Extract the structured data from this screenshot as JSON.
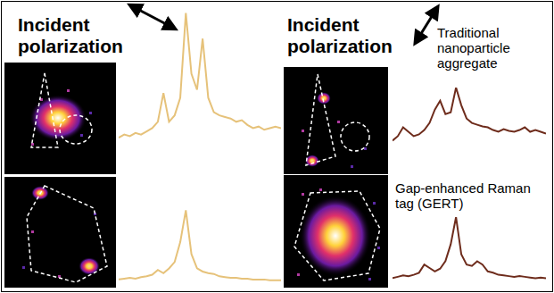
{
  "labels": {
    "left_header": "Incident polarization",
    "right_header": "Incident polarization",
    "top_right": "Traditional nanoparticle aggregate",
    "bottom_right": "Gap-enhanced Raman tag (GERT)"
  },
  "chart_data": [
    {
      "type": "line",
      "x": [
        0,
        1,
        2,
        3,
        4,
        5,
        6,
        7,
        8,
        9,
        10,
        11,
        12,
        13,
        14,
        15,
        16,
        17,
        18,
        19,
        20,
        21,
        22,
        23,
        24,
        25,
        26,
        27,
        28,
        29
      ],
      "values": [
        20,
        22,
        21,
        23,
        22,
        24,
        26,
        30,
        48,
        30,
        34,
        45,
        98,
        60,
        50,
        82,
        45,
        36,
        34,
        33,
        32,
        30,
        31,
        28,
        26,
        27,
        25,
        26,
        27,
        26
      ],
      "color": "#e6c27a",
      "xlim": [
        0,
        29
      ],
      "ylim": [
        0,
        100
      ],
      "tick_labels": false
    },
    {
      "type": "line",
      "x": [
        0,
        1,
        2,
        3,
        4,
        5,
        6,
        7,
        8,
        9,
        10,
        11,
        12,
        13,
        14,
        15,
        16,
        17,
        18,
        19,
        20,
        21,
        22,
        23,
        24,
        25,
        26,
        27,
        28,
        29
      ],
      "values": [
        8,
        9,
        10,
        9,
        11,
        12,
        14,
        20,
        16,
        22,
        30,
        55,
        95,
        40,
        22,
        18,
        16,
        15,
        12,
        11,
        10,
        10,
        9,
        9,
        8,
        8,
        8,
        7,
        7,
        7
      ],
      "color": "#e6c27a",
      "xlim": [
        0,
        29
      ],
      "ylim": [
        0,
        100
      ],
      "tick_labels": false
    },
    {
      "type": "line",
      "x": [
        0,
        1,
        2,
        3,
        4,
        5,
        6,
        7,
        8,
        9,
        10,
        11,
        12,
        13,
        14,
        15,
        16,
        17,
        18,
        19,
        20,
        21,
        22,
        23,
        24,
        25,
        26,
        27,
        28,
        29
      ],
      "values": [
        40,
        45,
        55,
        50,
        45,
        47,
        52,
        60,
        75,
        85,
        70,
        72,
        100,
        80,
        65,
        60,
        58,
        56,
        55,
        52,
        50,
        53,
        51,
        50,
        52,
        55,
        50,
        52,
        50,
        48
      ],
      "color": "#6e2c1c",
      "xlim": [
        0,
        29
      ],
      "ylim": [
        0,
        100
      ],
      "tick_labels": false
    },
    {
      "type": "line",
      "x": [
        0,
        1,
        2,
        3,
        4,
        5,
        6,
        7,
        8,
        9,
        10,
        11,
        12,
        13,
        14,
        15,
        16,
        17,
        18,
        19,
        20,
        21,
        22,
        23,
        24,
        25,
        26,
        27,
        28,
        29
      ],
      "values": [
        10,
        12,
        14,
        13,
        15,
        18,
        30,
        25,
        20,
        24,
        35,
        60,
        100,
        45,
        30,
        28,
        35,
        30,
        20,
        18,
        15,
        14,
        13,
        12,
        13,
        12,
        11,
        10,
        11,
        10
      ],
      "color": "#6e2c1c",
      "xlim": [
        0,
        29
      ],
      "ylim": [
        0,
        100
      ],
      "tick_labels": false
    }
  ]
}
